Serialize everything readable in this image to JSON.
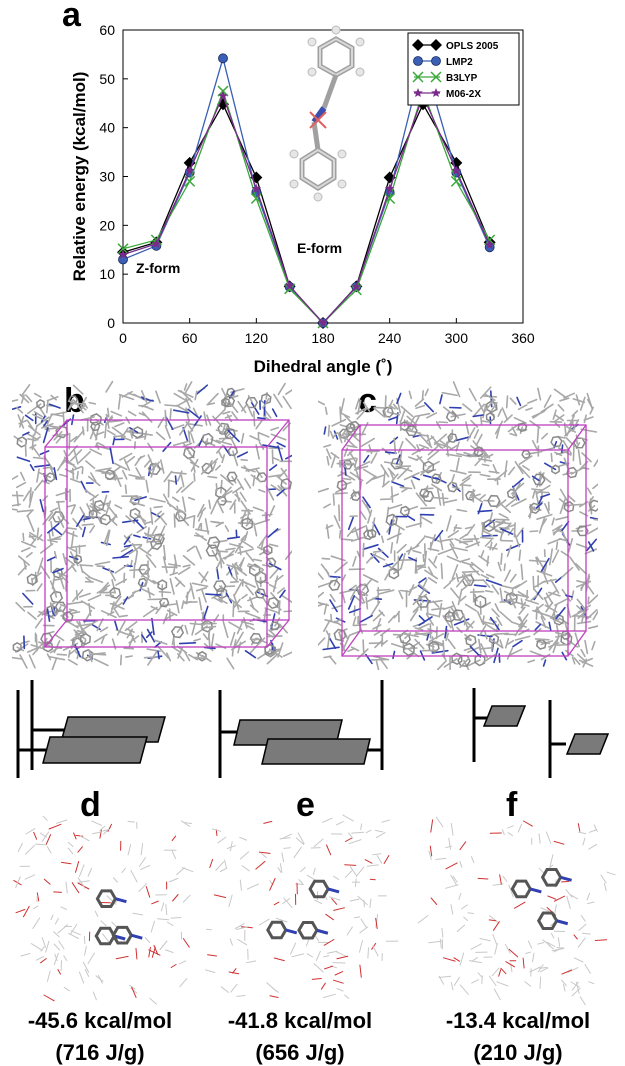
{
  "panels": {
    "a": "a",
    "b": "b",
    "c": "c",
    "d": "d",
    "e": "e",
    "f": "f"
  },
  "chart_data": {
    "type": "line",
    "xlabel": "Dihedral angle (˚)",
    "ylabel": "Relative energy (kcal/mol)",
    "xlim": [
      0,
      360
    ],
    "ylim": [
      0,
      60
    ],
    "xticks": [
      0,
      60,
      120,
      180,
      240,
      300,
      360
    ],
    "yticks": [
      0,
      10,
      20,
      30,
      40,
      50,
      60
    ],
    "grid": false,
    "legend_position": "top-right",
    "annotations": [
      "Z-form",
      "E-form"
    ],
    "x": [
      0,
      30,
      60,
      90,
      120,
      150,
      180,
      210,
      240,
      270,
      300,
      330
    ],
    "series": [
      {
        "name": "OPLS 2005",
        "color": "#000000",
        "marker": "diamond",
        "values": [
          14.5,
          16.5,
          32.8,
          44.8,
          29.8,
          7.5,
          0,
          7.5,
          29.8,
          44.8,
          32.8,
          16.5
        ]
      },
      {
        "name": "LMP2",
        "color": "#3a5fb5",
        "marker": "circle",
        "values": [
          13.0,
          15.8,
          30.8,
          54.2,
          26.8,
          7.4,
          0,
          7.4,
          26.8,
          54.2,
          30.8,
          15.5
        ]
      },
      {
        "name": "B3LYP",
        "color": "#3aa83a",
        "marker": "x",
        "values": [
          15.2,
          17.0,
          29.0,
          47.5,
          25.5,
          7.0,
          0,
          6.8,
          25.5,
          47.5,
          29.0,
          17.0
        ]
      },
      {
        "name": "M06-2X",
        "color": "#7a2a8a",
        "marker": "star",
        "values": [
          14.0,
          16.2,
          31.2,
          46.5,
          27.5,
          7.6,
          0,
          7.4,
          27.5,
          46.5,
          31.2,
          16.0
        ]
      }
    ]
  },
  "energies": [
    {
      "value": "-45.6 kcal/mol",
      "density": "(716 J/g)"
    },
    {
      "value": "-41.8 kcal/mol",
      "density": "(656 J/g)"
    },
    {
      "value": "-13.4 kcal/mol",
      "density": "(210 J/g)"
    }
  ],
  "colors": {
    "box_edge": "#c040c0",
    "backbone": "#a8a8a8",
    "nitrogen": "#3040b0",
    "oxygen": "#d03030",
    "plate": "#7a7a7a"
  }
}
